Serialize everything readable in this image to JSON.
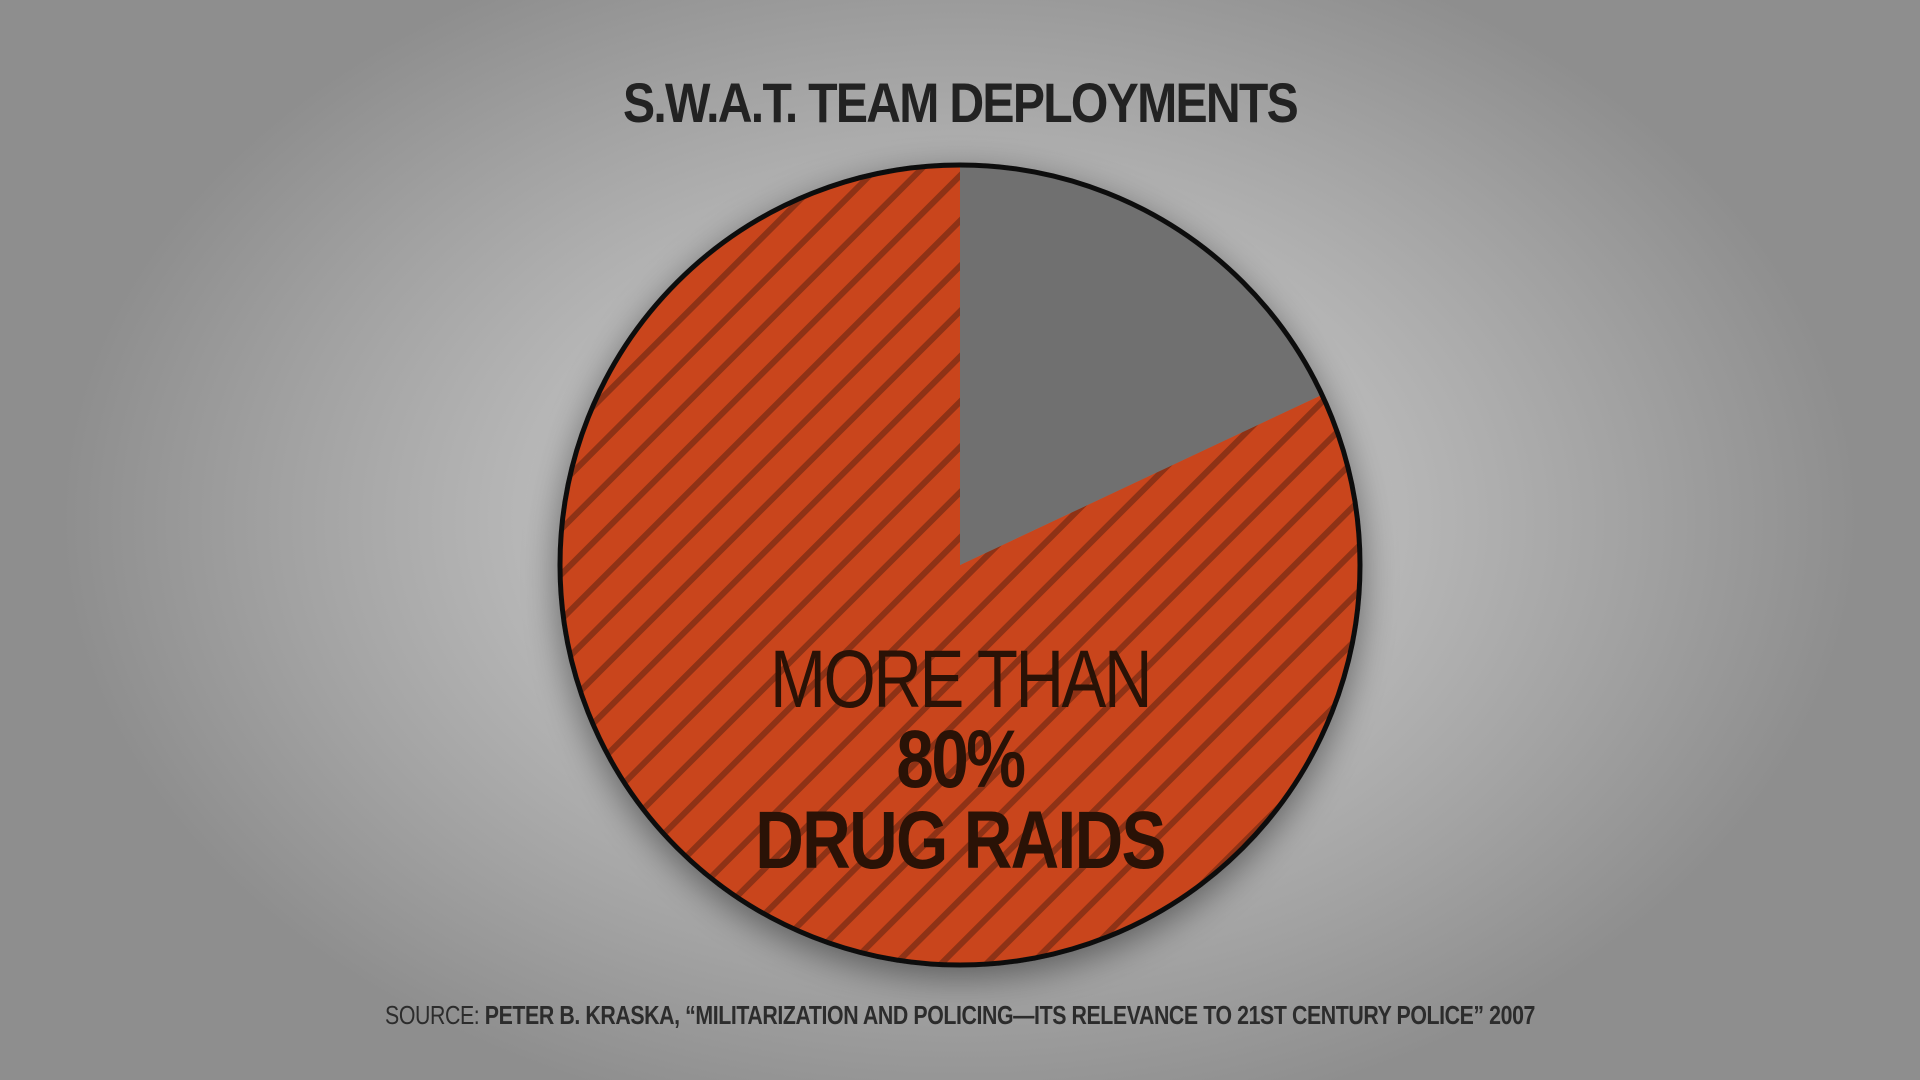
{
  "chart_data": {
    "type": "pie",
    "title": "S.W.A.T. TEAM DEPLOYMENTS",
    "slices": [
      {
        "label_pre": "MORE THAN ",
        "label_num": "80%",
        "label_line2": "DRUG RAIDS",
        "value": 82,
        "color": "#c9441a"
      },
      {
        "label_pre": "",
        "label_num": "",
        "label_line2": "",
        "value": 18,
        "color": "#6f6f6f"
      }
    ],
    "start_angle_deg": 0,
    "hatch_color": "#7a2a10"
  },
  "source": {
    "prefix": "SOURCE: ",
    "text": "PETER B. KRASKA, “MILITARIZATION AND POLICING—ITS RELEVANCE TO 21ST CENTURY POLICE” 2007"
  }
}
